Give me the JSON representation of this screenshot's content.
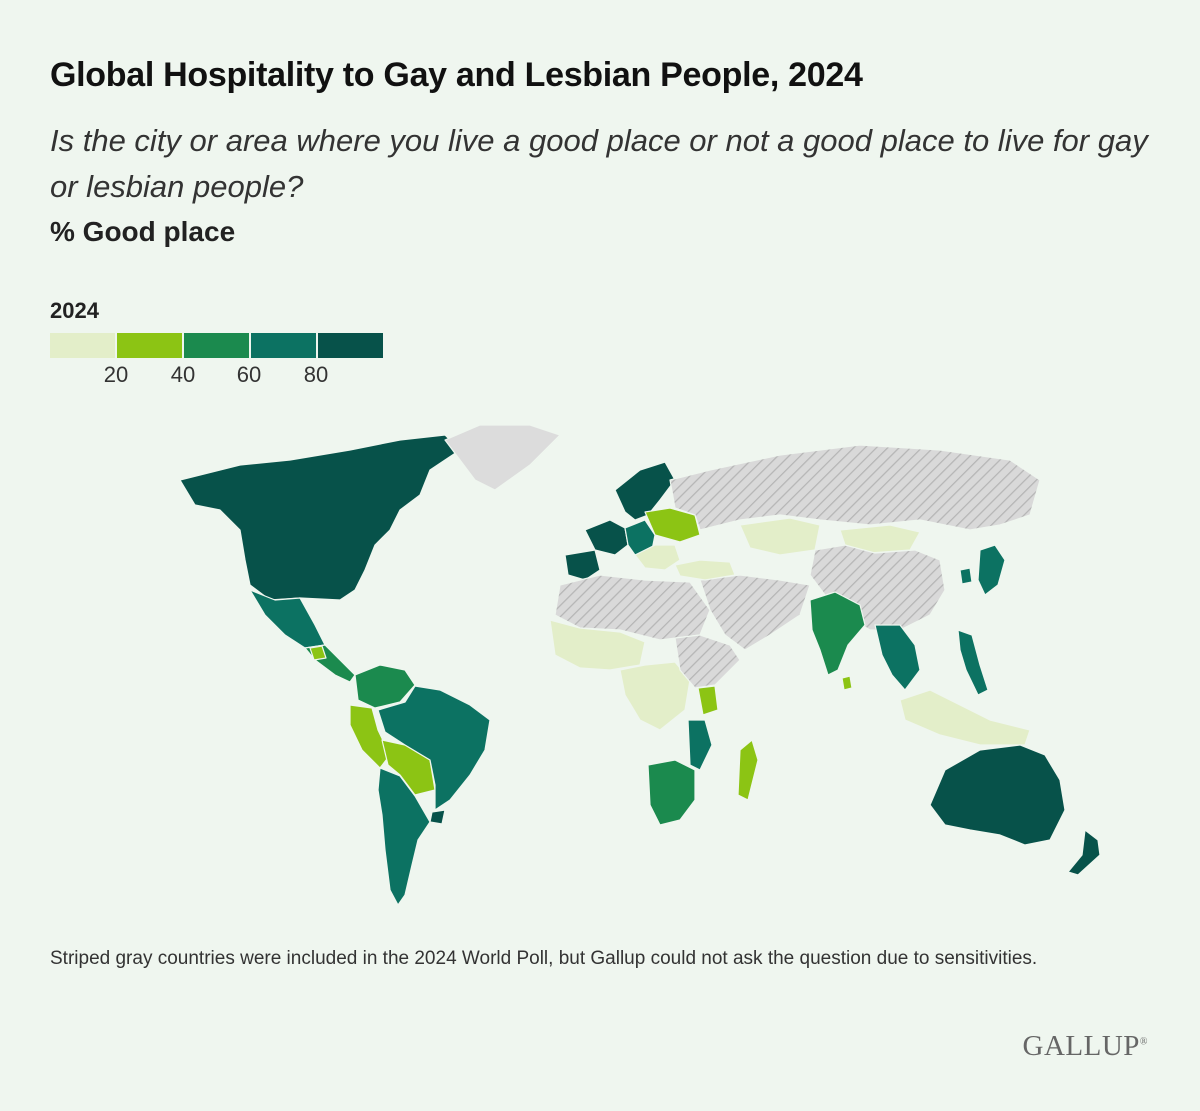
{
  "title": "Global Hospitality to Gay and Lesbian People, 2024",
  "question": "Is the city or area where you live a good place or not a good place to live for gay or lesbian people?",
  "measure": "% Good place",
  "legend": {
    "title": "2024",
    "bins": [
      {
        "range": "0-20",
        "color": "#e3eec9"
      },
      {
        "range": "20-40",
        "color": "#8cc414"
      },
      {
        "range": "40-60",
        "color": "#1b8a4e"
      },
      {
        "range": "60-80",
        "color": "#0c7262"
      },
      {
        "range": "80-100",
        "color": "#07524a"
      }
    ],
    "ticks": [
      "20",
      "40",
      "60",
      "80"
    ],
    "not_asked_label": "Striped gray",
    "not_asked_color": "#d9d9d9",
    "no_data_color": "#dcdcdc"
  },
  "footnote": "Striped gray countries were included in the 2024 World Poll, but Gallup could not ask the question due to sensitivities.",
  "logo": {
    "text": "GALLUP",
    "mark": "®"
  },
  "regions": [
    {
      "name": "North America",
      "bin": 4
    },
    {
      "name": "Greenland",
      "bin": -1
    },
    {
      "name": "Mexico",
      "bin": 3
    },
    {
      "name": "Central America",
      "bin": 2
    },
    {
      "name": "Guatemala",
      "bin": 1
    },
    {
      "name": "Colombia / Venezuela",
      "bin": 2
    },
    {
      "name": "Peru",
      "bin": 1
    },
    {
      "name": "Bolivia / Paraguay",
      "bin": 1
    },
    {
      "name": "Brazil",
      "bin": 3
    },
    {
      "name": "Uruguay",
      "bin": 4
    },
    {
      "name": "Argentina / Chile",
      "bin": 3
    },
    {
      "name": "Western Europe",
      "bin": 4
    },
    {
      "name": "Iberia",
      "bin": 4
    },
    {
      "name": "Nordics",
      "bin": 4
    },
    {
      "name": "Central Europe",
      "bin": 3
    },
    {
      "name": "Poland / Ukraine",
      "bin": 1
    },
    {
      "name": "Balkans",
      "bin": 0
    },
    {
      "name": "Russia",
      "bin": -2
    },
    {
      "name": "Kazakhstan",
      "bin": 0
    },
    {
      "name": "Mongolia",
      "bin": 0
    },
    {
      "name": "China",
      "bin": -2
    },
    {
      "name": "Middle East",
      "bin": -2
    },
    {
      "name": "Turkey",
      "bin": 0
    },
    {
      "name": "North Africa",
      "bin": -2
    },
    {
      "name": "West Africa",
      "bin": 0
    },
    {
      "name": "Central Africa",
      "bin": 0
    },
    {
      "name": "Horn of Africa",
      "bin": -2
    },
    {
      "name": "Kenya",
      "bin": 1
    },
    {
      "name": "Southern Africa",
      "bin": 2
    },
    {
      "name": "Mozambique",
      "bin": 3
    },
    {
      "name": "Madagascar",
      "bin": 1
    },
    {
      "name": "India",
      "bin": 2
    },
    {
      "name": "Sri Lanka",
      "bin": 1
    },
    {
      "name": "Southeast Asia mainland",
      "bin": 3
    },
    {
      "name": "Philippines",
      "bin": 3
    },
    {
      "name": "Indonesia",
      "bin": 0
    },
    {
      "name": "Japan",
      "bin": 3
    },
    {
      "name": "South Korea",
      "bin": 3
    },
    {
      "name": "Australia",
      "bin": 4
    },
    {
      "name": "New Zealand",
      "bin": 4
    }
  ]
}
